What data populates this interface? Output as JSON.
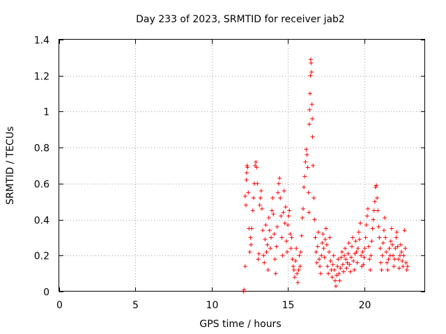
{
  "chart_data": {
    "type": "scatter",
    "title": "Day 233 of 2023, SRMTID for receiver jab2",
    "xlabel": "GPS time / hours",
    "ylabel": "SRMTID / TECUs",
    "xlim": [
      0,
      24
    ],
    "ylim": [
      0,
      1.4
    ],
    "xticks": [
      0,
      5,
      10,
      15,
      20
    ],
    "xtick_labels": [
      "0",
      "5",
      "10",
      "15",
      "20"
    ],
    "yticks": [
      0,
      0.2,
      0.4,
      0.6,
      0.8,
      1.0,
      1.2,
      1.4
    ],
    "ytick_labels": [
      "0",
      "0.2",
      "0.4",
      "0.6",
      "0.8",
      "1",
      "1.2",
      "1.4"
    ],
    "grid": true,
    "marker": "plus",
    "color": "#ff0000",
    "series": [
      {
        "name": "SRMTID",
        "points": [
          [
            12.1,
            0.0
          ],
          [
            12.12,
            0.01
          ],
          [
            12.2,
            0.14
          ],
          [
            12.2,
            0.53
          ],
          [
            12.25,
            0.48
          ],
          [
            12.28,
            0.62
          ],
          [
            12.3,
            0.66
          ],
          [
            12.32,
            0.7
          ],
          [
            12.35,
            0.69
          ],
          [
            12.4,
            0.55
          ],
          [
            12.45,
            0.35
          ],
          [
            12.5,
            0.22
          ],
          [
            12.55,
            0.3
          ],
          [
            12.58,
            0.26
          ],
          [
            12.62,
            0.35
          ],
          [
            12.7,
            0.45
          ],
          [
            12.75,
            0.52
          ],
          [
            12.8,
            0.6
          ],
          [
            12.85,
            0.7
          ],
          [
            12.9,
            0.72
          ],
          [
            12.95,
            0.69
          ],
          [
            13.0,
            0.6
          ],
          [
            13.05,
            0.18
          ],
          [
            13.1,
            0.21
          ],
          [
            13.15,
            0.48
          ],
          [
            13.2,
            0.52
          ],
          [
            13.25,
            0.56
          ],
          [
            13.3,
            0.46
          ],
          [
            13.35,
            0.34
          ],
          [
            13.4,
            0.2
          ],
          [
            13.45,
            0.16
          ],
          [
            13.5,
            0.29
          ],
          [
            13.55,
            0.37
          ],
          [
            13.6,
            0.22
          ],
          [
            13.65,
            0.26
          ],
          [
            13.7,
            0.12
          ],
          [
            13.75,
            0.41
          ],
          [
            13.8,
            0.34
          ],
          [
            13.85,
            0.24
          ],
          [
            13.9,
            0.3
          ],
          [
            13.95,
            0.45
          ],
          [
            14.0,
            0.52
          ],
          [
            14.05,
            0.43
          ],
          [
            14.1,
            0.32
          ],
          [
            14.15,
            0.18
          ],
          [
            14.2,
            0.1
          ],
          [
            14.25,
            0.25
          ],
          [
            14.3,
            0.36
          ],
          [
            14.35,
            0.55
          ],
          [
            14.4,
            0.6
          ],
          [
            14.45,
            0.63
          ],
          [
            14.5,
            0.52
          ],
          [
            14.55,
            0.42
          ],
          [
            14.6,
            0.3
          ],
          [
            14.65,
            0.2
          ],
          [
            14.7,
            0.44
          ],
          [
            14.75,
            0.56
          ],
          [
            14.8,
            0.38
          ],
          [
            14.85,
            0.47
          ],
          [
            14.9,
            0.28
          ],
          [
            14.95,
            0.22
          ],
          [
            15.0,
            0.37
          ],
          [
            15.05,
            0.42
          ],
          [
            15.1,
            0.45
          ],
          [
            15.15,
            0.32
          ],
          [
            15.2,
            0.24
          ],
          [
            15.25,
            0.3
          ],
          [
            15.3,
            0.18
          ],
          [
            15.35,
            0.14
          ],
          [
            15.4,
            0.12
          ],
          [
            15.45,
            0.08
          ],
          [
            15.5,
            0.17
          ],
          [
            15.55,
            0.24
          ],
          [
            15.6,
            0.1
          ],
          [
            15.65,
            0.05
          ],
          [
            15.7,
            0.12
          ],
          [
            15.75,
            0.2
          ],
          [
            15.8,
            0.14
          ],
          [
            15.85,
            0.22
          ],
          [
            15.9,
            0.31
          ],
          [
            15.95,
            0.41
          ],
          [
            16.0,
            0.46
          ],
          [
            16.05,
            0.58
          ],
          [
            16.1,
            0.64
          ],
          [
            16.15,
            0.72
          ],
          [
            16.2,
            0.79
          ],
          [
            16.25,
            0.76
          ],
          [
            16.3,
            0.69
          ],
          [
            16.35,
            0.55
          ],
          [
            16.38,
            0.44
          ],
          [
            16.4,
            0.93
          ],
          [
            16.42,
            1.01
          ],
          [
            16.45,
            1.1
          ],
          [
            16.48,
            1.2
          ],
          [
            16.5,
            1.29
          ],
          [
            16.52,
            1.27
          ],
          [
            16.55,
            1.22
          ],
          [
            16.58,
            1.04
          ],
          [
            16.6,
            0.96
          ],
          [
            16.62,
            0.86
          ],
          [
            16.65,
            0.7
          ],
          [
            16.7,
            0.52
          ],
          [
            16.75,
            0.4
          ],
          [
            16.8,
            0.3
          ],
          [
            16.85,
            0.22
          ],
          [
            16.9,
            0.16
          ],
          [
            16.95,
            0.25
          ],
          [
            17.0,
            0.33
          ],
          [
            17.05,
            0.18
          ],
          [
            17.1,
            0.14
          ],
          [
            17.15,
            0.1
          ],
          [
            17.2,
            0.2
          ],
          [
            17.25,
            0.27
          ],
          [
            17.3,
            0.32
          ],
          [
            17.35,
            0.24
          ],
          [
            17.4,
            0.19
          ],
          [
            17.45,
            0.29
          ],
          [
            17.5,
            0.35
          ],
          [
            17.55,
            0.26
          ],
          [
            17.6,
            0.14
          ],
          [
            17.65,
            0.1
          ],
          [
            17.7,
            0.22
          ],
          [
            17.75,
            0.3
          ],
          [
            17.8,
            0.17
          ],
          [
            17.85,
            0.12
          ],
          [
            17.9,
            0.08
          ],
          [
            17.95,
            0.15
          ],
          [
            18.0,
            0.2
          ],
          [
            18.05,
            0.12
          ],
          [
            18.1,
            0.06
          ],
          [
            18.15,
            0.03
          ],
          [
            18.2,
            0.09
          ],
          [
            18.25,
            0.14
          ],
          [
            18.3,
            0.18
          ],
          [
            18.35,
            0.1
          ],
          [
            18.4,
            0.06
          ],
          [
            18.45,
            0.13
          ],
          [
            18.5,
            0.19
          ],
          [
            18.55,
            0.22
          ],
          [
            18.6,
            0.15
          ],
          [
            18.65,
            0.11
          ],
          [
            18.7,
            0.2
          ],
          [
            18.75,
            0.24
          ],
          [
            18.8,
            0.18
          ],
          [
            18.85,
            0.13
          ],
          [
            18.9,
            0.16
          ],
          [
            18.95,
            0.21
          ],
          [
            19.0,
            0.27
          ],
          [
            19.05,
            0.15
          ],
          [
            19.1,
            0.11
          ],
          [
            19.15,
            0.19
          ],
          [
            19.2,
            0.25
          ],
          [
            19.25,
            0.3
          ],
          [
            19.3,
            0.17
          ],
          [
            19.35,
            0.12
          ],
          [
            19.4,
            0.21
          ],
          [
            19.45,
            0.28
          ],
          [
            19.5,
            0.22
          ],
          [
            19.55,
            0.16
          ],
          [
            19.6,
            0.24
          ],
          [
            19.65,
            0.33
          ],
          [
            19.7,
            0.29
          ],
          [
            19.75,
            0.38
          ],
          [
            19.8,
            0.2
          ],
          [
            19.85,
            0.14
          ],
          [
            19.9,
            0.22
          ],
          [
            19.95,
            0.15
          ],
          [
            20.0,
            0.19
          ],
          [
            20.05,
            0.24
          ],
          [
            20.1,
            0.3
          ],
          [
            20.15,
            0.37
          ],
          [
            20.2,
            0.42
          ],
          [
            20.25,
            0.46
          ],
          [
            20.3,
            0.25
          ],
          [
            20.35,
            0.18
          ],
          [
            20.4,
            0.12
          ],
          [
            20.45,
            0.2
          ],
          [
            20.5,
            0.28
          ],
          [
            20.55,
            0.35
          ],
          [
            20.6,
            0.4
          ],
          [
            20.65,
            0.45
          ],
          [
            20.7,
            0.5
          ],
          [
            20.75,
            0.58
          ],
          [
            20.8,
            0.59
          ],
          [
            20.85,
            0.52
          ],
          [
            20.9,
            0.45
          ],
          [
            20.95,
            0.36
          ],
          [
            21.0,
            0.3
          ],
          [
            21.05,
            0.24
          ],
          [
            21.1,
            0.16
          ],
          [
            21.15,
            0.12
          ],
          [
            21.2,
            0.2
          ],
          [
            21.25,
            0.27
          ],
          [
            21.3,
            0.34
          ],
          [
            21.35,
            0.41
          ],
          [
            21.4,
            0.3
          ],
          [
            21.45,
            0.22
          ],
          [
            21.5,
            0.16
          ],
          [
            21.55,
            0.12
          ],
          [
            21.6,
            0.18
          ],
          [
            21.65,
            0.24
          ],
          [
            21.7,
            0.2
          ],
          [
            21.75,
            0.28
          ],
          [
            21.8,
            0.35
          ],
          [
            21.85,
            0.26
          ],
          [
            21.9,
            0.2
          ],
          [
            21.95,
            0.14
          ],
          [
            22.0,
            0.18
          ],
          [
            22.05,
            0.24
          ],
          [
            22.1,
            0.3
          ],
          [
            22.15,
            0.33
          ],
          [
            22.2,
            0.25
          ],
          [
            22.25,
            0.18
          ],
          [
            22.3,
            0.13
          ],
          [
            22.35,
            0.2
          ],
          [
            22.4,
            0.26
          ],
          [
            22.45,
            0.22
          ],
          [
            22.5,
            0.17
          ],
          [
            22.55,
            0.14
          ],
          [
            22.6,
            0.2
          ],
          [
            22.65,
            0.34
          ],
          [
            22.7,
            0.24
          ],
          [
            22.75,
            0.16
          ],
          [
            22.8,
            0.12
          ],
          [
            22.85,
            0.14
          ]
        ]
      }
    ]
  }
}
